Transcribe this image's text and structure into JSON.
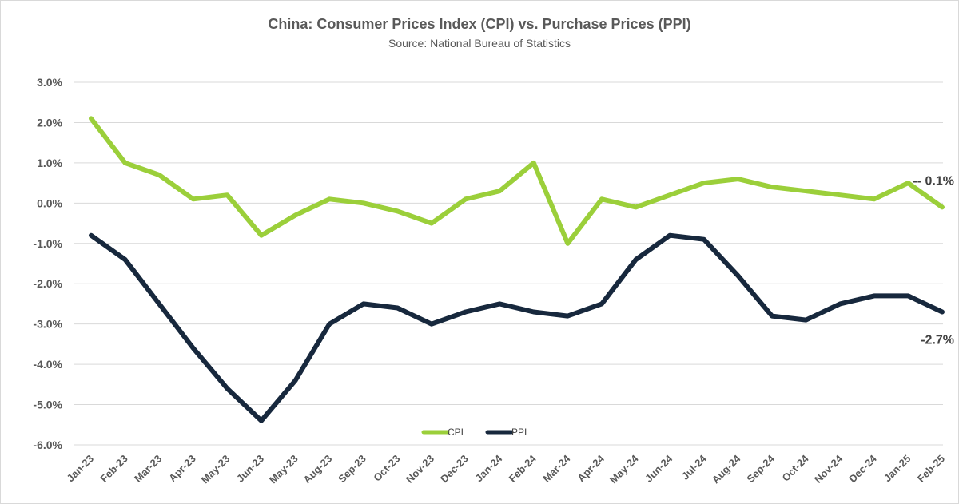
{
  "title": "China: Consumer Prices Index (CPI) vs. Purchase Prices (PPI)",
  "subtitle": "Source: National Bureau of Statistics",
  "colors": {
    "CPI": "#9bcf3a",
    "PPI": "#17283d",
    "grid": "#d9d9d9",
    "text": "#595959"
  },
  "chart_data": {
    "type": "line",
    "title": "China: Consumer Prices Index (CPI) vs. Purchase Prices (PPI)",
    "subtitle": "Source: National Bureau of Statistics",
    "xlabel": "",
    "ylabel": "",
    "ylim": [
      -6,
      3
    ],
    "yticks": [
      "3.0%",
      "2.0%",
      "1.0%",
      "0.0%",
      "-1.0%",
      "-2.0%",
      "-3.0%",
      "-4.0%",
      "-5.0%",
      "-6.0%"
    ],
    "categories": [
      "Jan-23",
      "Feb-23",
      "Mar-23",
      "Apr-23",
      "May-23",
      "Jun-23",
      "May-23",
      "Aug-23",
      "Sep-23",
      "Oct-23",
      "Nov-23",
      "Dec-23",
      "Jan-24",
      "Feb-24",
      "Mar-24",
      "Apr-24",
      "May-24",
      "Jun-24",
      "Jul-24",
      "Aug-24",
      "Sep-24",
      "Oct-24",
      "Nov-24",
      "Dec-24",
      "Jan-25",
      "Feb-25"
    ],
    "grid": true,
    "legend": "bottom-center",
    "series": [
      {
        "name": "CPI",
        "values": [
          2.1,
          1.0,
          0.7,
          0.1,
          0.2,
          -0.8,
          -0.3,
          0.1,
          0.0,
          -0.2,
          -0.5,
          0.1,
          0.3,
          1.0,
          -1.0,
          0.1,
          -0.1,
          0.2,
          0.5,
          0.6,
          0.4,
          0.3,
          0.2,
          0.1,
          0.5,
          -0.1
        ]
      },
      {
        "name": "PPI",
        "values": [
          -0.8,
          -1.4,
          -2.5,
          -3.6,
          -4.6,
          -5.4,
          -4.4,
          -3.0,
          -2.5,
          -2.6,
          -3.0,
          -2.7,
          -2.5,
          -2.7,
          -2.8,
          -2.5,
          -1.4,
          -0.8,
          -0.9,
          -1.8,
          -2.8,
          -2.9,
          -2.5,
          -2.3,
          -2.3,
          -2.7
        ]
      }
    ],
    "annotations": [
      {
        "series": "CPI",
        "text": "-- 0.1%"
      },
      {
        "series": "PPI",
        "text": "-2.7%"
      }
    ]
  }
}
